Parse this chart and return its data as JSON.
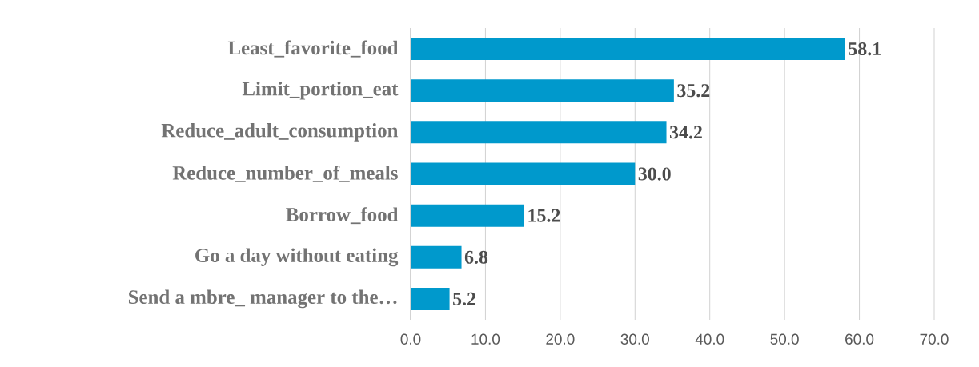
{
  "chart_data": {
    "type": "bar",
    "orientation": "horizontal",
    "categories": [
      "Least_favorite_food",
      "Limit_portion_eat",
      "Reduce_adult_consumption",
      "Reduce_number_of_meals",
      "Borrow_food",
      "Go a day without eating",
      "Send a mbre_ manager to the…"
    ],
    "values": [
      58.1,
      35.2,
      34.2,
      30.0,
      15.2,
      6.8,
      5.2
    ],
    "value_labels": [
      "58.1",
      "35.2",
      "34.2",
      "30.0",
      "15.2",
      "6.8",
      "5.2"
    ],
    "color": "#0099cc",
    "xlim": [
      0,
      70
    ],
    "xticks": [
      {
        "value": 0,
        "label": "0.0"
      },
      {
        "value": 10,
        "label": "10.0"
      },
      {
        "value": 20,
        "label": "20.0"
      },
      {
        "value": 30,
        "label": "30.0"
      },
      {
        "value": 40,
        "label": "40.0"
      },
      {
        "value": 50,
        "label": "50.0"
      },
      {
        "value": 60,
        "label": "60.0"
      },
      {
        "value": 70,
        "label": "70.0"
      }
    ],
    "grid": "x"
  }
}
